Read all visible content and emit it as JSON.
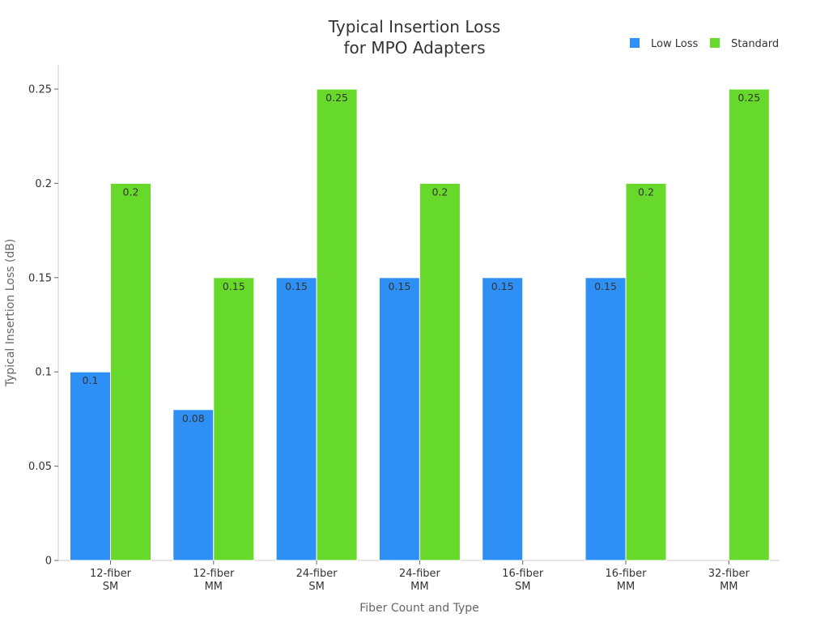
{
  "chart_data": {
    "type": "bar",
    "title": [
      "Typical Insertion Loss",
      "for MPO Adapters"
    ],
    "xlabel": "Fiber Count and Type",
    "ylabel": "Typical Insertion Loss (dB)",
    "ylim": [
      0,
      0.25
    ],
    "yticks": [
      "0",
      "0.05",
      "0.1",
      "0.15",
      "0.2",
      "0.25"
    ],
    "ytick_values": [
      0,
      0.05,
      0.1,
      0.15,
      0.2,
      0.25
    ],
    "categories": [
      [
        "12-fiber",
        "SM"
      ],
      [
        "12-fiber",
        "MM"
      ],
      [
        "24-fiber",
        "SM"
      ],
      [
        "24-fiber",
        "MM"
      ],
      [
        "16-fiber",
        "SM"
      ],
      [
        "16-fiber",
        "MM"
      ],
      [
        "32-fiber",
        "MM"
      ]
    ],
    "series": [
      {
        "name": "Low Loss",
        "color": "#2E90F5",
        "values": [
          0.1,
          0.08,
          0.15,
          0.15,
          0.15,
          0.15,
          null
        ],
        "labels": [
          "0.1",
          "0.08",
          "0.15",
          "0.15",
          "0.15",
          "0.15",
          null
        ]
      },
      {
        "name": "Standard",
        "color": "#66D92A",
        "values": [
          0.2,
          0.15,
          0.25,
          0.2,
          null,
          0.2,
          0.25
        ],
        "labels": [
          "0.2",
          "0.15",
          "0.25",
          "0.2",
          null,
          "0.2",
          "0.25"
        ]
      }
    ],
    "legend_position": "top-right",
    "grid": false
  }
}
